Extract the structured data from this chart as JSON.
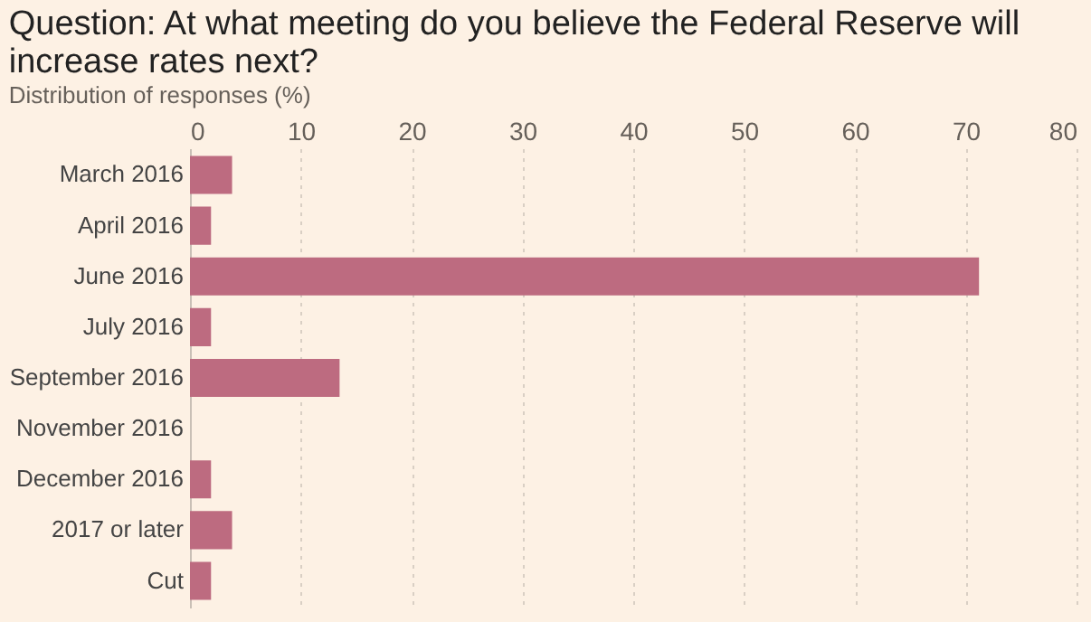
{
  "chart_data": {
    "type": "bar",
    "orientation": "horizontal",
    "title": "Question: At what meeting do you believe the Federal Reserve will increase rates next?",
    "subtitle": "Distribution of responses (%)",
    "categories": [
      "March 2016",
      "April 2016",
      "June 2016",
      "July 2016",
      "September 2016",
      "November 2016",
      "December 2016",
      "2017 or later",
      "Cut"
    ],
    "values": [
      3.8,
      1.9,
      71.2,
      1.9,
      13.5,
      0,
      1.9,
      3.8,
      1.9
    ],
    "color": "#bd6b80",
    "xlim": [
      0,
      80
    ],
    "xticks": [
      0,
      10,
      20,
      30,
      40,
      50,
      60,
      70,
      80
    ],
    "grid": "x"
  }
}
